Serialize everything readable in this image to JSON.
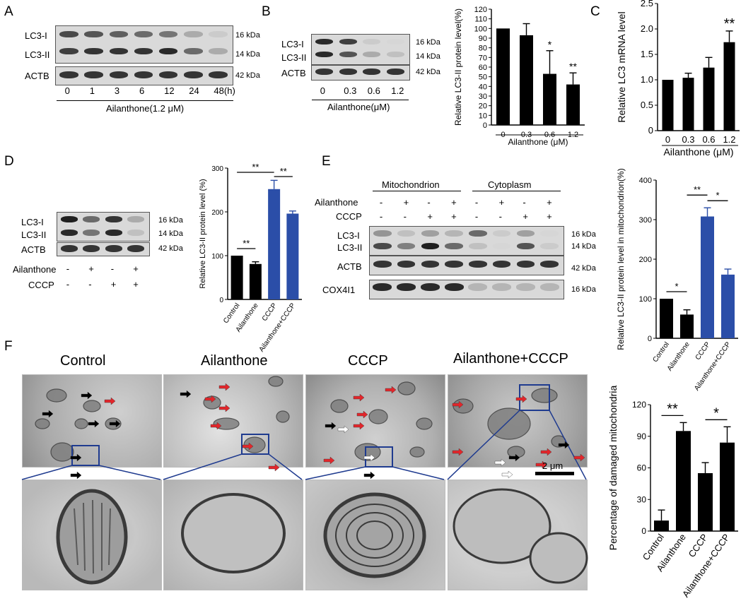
{
  "panel_letters": {
    "A": "A",
    "B": "B",
    "C": "C",
    "D": "D",
    "E": "E",
    "F": "F"
  },
  "blot_common": {
    "lc3_i": "LC3-I",
    "lc3_ii": "LC3-II",
    "actb": "ACTB",
    "kda16": "16 kDa",
    "kda14": "14 kDa",
    "kda42": "42 kDa"
  },
  "panelA": {
    "lanes": [
      "0",
      "1",
      "3",
      "6",
      "12",
      "24",
      "48(h)"
    ],
    "condition": "Ailanthone(1.2 μM)",
    "band_i": [
      0.75,
      0.7,
      0.65,
      0.6,
      0.55,
      0.3,
      0.15
    ],
    "band_ii": [
      0.8,
      0.85,
      0.85,
      0.85,
      0.9,
      0.6,
      0.3
    ]
  },
  "panelB": {
    "lanes": [
      "0",
      "0.3",
      "0.6",
      "1.2"
    ],
    "condition": "Ailanthone(μM)",
    "band_i": [
      0.9,
      0.8,
      0.15,
      0.1
    ],
    "band_ii": [
      0.9,
      0.7,
      0.3,
      0.2
    ]
  },
  "panelD": {
    "rows": [
      {
        "label": "Ailanthone",
        "values": [
          "-",
          "+",
          "-",
          "+"
        ]
      },
      {
        "label": "CCCP",
        "values": [
          "-",
          "-",
          "+",
          "+"
        ]
      }
    ],
    "band_i": [
      0.95,
      0.6,
      0.85,
      0.3
    ],
    "band_ii": [
      0.9,
      0.55,
      0.9,
      0.2
    ]
  },
  "panelE": {
    "groups": [
      "Mitochondrion",
      "Cytoplasm"
    ],
    "rows": [
      {
        "label": "Ailanthone",
        "values": [
          "-",
          "+",
          "-",
          "+",
          "-",
          "+",
          "-",
          "+"
        ]
      },
      {
        "label": "CCCP",
        "values": [
          "-",
          "-",
          "+",
          "+",
          "-",
          "-",
          "+",
          "+"
        ]
      }
    ],
    "cox": "COX4I1"
  },
  "panelF": {
    "titles": [
      "Control",
      "Ailanthone",
      "CCCP",
      "Ailanthone+CCCP"
    ],
    "scalebar": "2 μm"
  },
  "chart_data": [
    {
      "id": "B",
      "type": "bar",
      "categories": [
        "0",
        "0.3",
        "0.6",
        "1.2"
      ],
      "values": [
        100,
        93,
        53,
        42
      ],
      "errors": [
        0,
        12,
        24,
        12
      ],
      "ylabel": "Relative LC3-II protein level(%)",
      "xlabel": "Ailanthone (μM)",
      "ylim": [
        0,
        120
      ],
      "yticks": [
        "0",
        "10",
        "20",
        "30",
        "40",
        "50",
        "60",
        "70",
        "80",
        "90",
        "100",
        "110",
        "120"
      ],
      "colors": [
        "#000000",
        "#000000",
        "#000000",
        "#000000"
      ],
      "sig": [
        "",
        "",
        "*",
        "**"
      ]
    },
    {
      "id": "C",
      "type": "bar",
      "categories": [
        "0",
        "0.3",
        "0.6",
        "1.2"
      ],
      "values": [
        1.0,
        1.04,
        1.24,
        1.74
      ],
      "errors": [
        0,
        0.09,
        0.2,
        0.22
      ],
      "ylabel": "Relative LC3 mRNA level",
      "xlabel": "Ailanthone (μM)",
      "ylim": [
        0,
        2.5
      ],
      "yticks": [
        "0",
        "0.5",
        "1.0",
        "1.5",
        "2.0",
        "2.5"
      ],
      "colors": [
        "#000000",
        "#000000",
        "#000000",
        "#000000"
      ],
      "sig": [
        "",
        "",
        "",
        "**"
      ]
    },
    {
      "id": "D",
      "type": "bar",
      "categories": [
        "Control",
        "Ailanthone",
        "CCCP",
        "Ailanthone+CCCP"
      ],
      "values": [
        100,
        81,
        252,
        196
      ],
      "errors": [
        0,
        5,
        20,
        6
      ],
      "ylabel": "Relative LC3-II protein level (%)",
      "ylim": [
        0,
        300
      ],
      "yticks": [
        "0",
        "100",
        "200",
        "300"
      ],
      "colors": [
        "#000000",
        "#000000",
        "#2b4ea8",
        "#2b4ea8"
      ],
      "brackets": [
        {
          "from": 0,
          "to": 1,
          "label": "**"
        },
        {
          "from": 0,
          "to": 2,
          "label": "**"
        },
        {
          "from": 2,
          "to": 3,
          "label": "**"
        }
      ]
    },
    {
      "id": "E",
      "type": "bar",
      "categories": [
        "Control",
        "Ailanthone",
        "CCCP",
        "Ailanthone+CCCP"
      ],
      "values": [
        100,
        60,
        308,
        161
      ],
      "errors": [
        0,
        12,
        22,
        14
      ],
      "ylabel": "Relative LC3-II protein level in mitochondrion(%)",
      "ylim": [
        0,
        400
      ],
      "yticks": [
        "0",
        "100",
        "200",
        "300",
        "400"
      ],
      "colors": [
        "#000000",
        "#000000",
        "#2b4ea8",
        "#2b4ea8"
      ],
      "brackets": [
        {
          "from": 0,
          "to": 1,
          "label": "*"
        },
        {
          "from": 1,
          "to": 2,
          "label": "**"
        },
        {
          "from": 2,
          "to": 3,
          "label": "*"
        }
      ]
    },
    {
      "id": "F",
      "type": "bar",
      "categories": [
        "Control",
        "Ailanthone",
        "CCCP",
        "Ailanthone+CCCP"
      ],
      "values": [
        10,
        95,
        55,
        84
      ],
      "errors": [
        10,
        8,
        10,
        15
      ],
      "ylabel": "Percentage of damaged mitochondria",
      "ylim": [
        0,
        120
      ],
      "yticks": [
        "0",
        "30",
        "60",
        "90",
        "120"
      ],
      "colors": [
        "#000000",
        "#000000",
        "#000000",
        "#000000"
      ],
      "brackets": [
        {
          "from": 0,
          "to": 1,
          "label": "**"
        },
        {
          "from": 2,
          "to": 3,
          "label": "*"
        }
      ]
    }
  ]
}
